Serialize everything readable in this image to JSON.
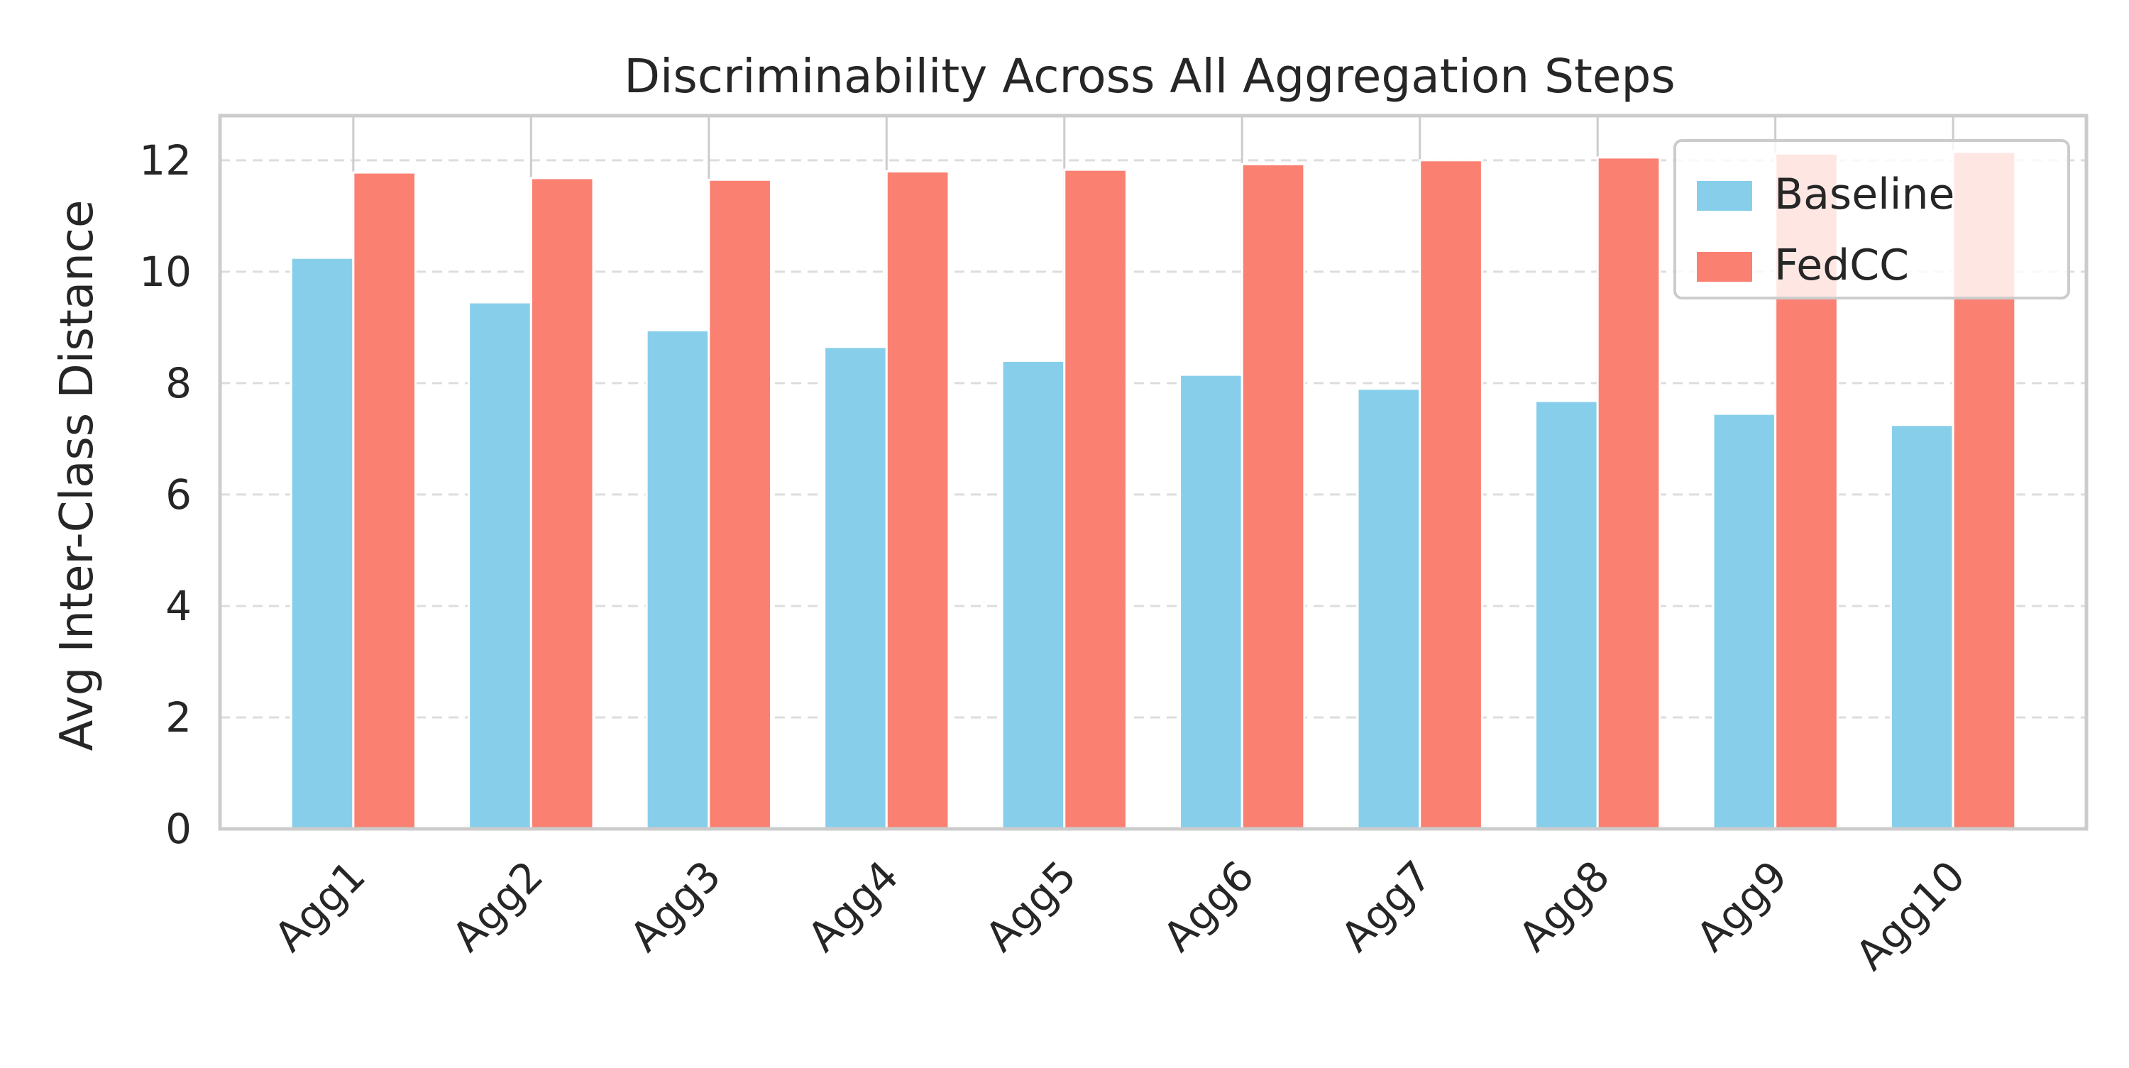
{
  "chart_data": {
    "type": "bar",
    "title": "Discriminability Across All Aggregation Steps",
    "xlabel": "",
    "ylabel": "Avg Inter-Class Distance",
    "categories": [
      "Agg1",
      "Agg2",
      "Agg3",
      "Agg4",
      "Agg5",
      "Agg6",
      "Agg7",
      "Agg8",
      "Agg9",
      "Agg10"
    ],
    "series": [
      {
        "name": "Baseline",
        "color": "#87CEEB",
        "values": [
          10.25,
          9.45,
          8.95,
          8.65,
          8.4,
          8.15,
          7.9,
          7.68,
          7.45,
          7.25
        ]
      },
      {
        "name": "FedCC",
        "color": "#FA8072",
        "values": [
          11.78,
          11.68,
          11.65,
          11.8,
          11.83,
          11.93,
          12.0,
          12.05,
          12.12,
          12.15
        ]
      }
    ],
    "ylim": [
      0,
      12.8
    ],
    "yticks": [
      0,
      2,
      4,
      6,
      8,
      10,
      12
    ],
    "grid": true,
    "legend": "top-right"
  }
}
